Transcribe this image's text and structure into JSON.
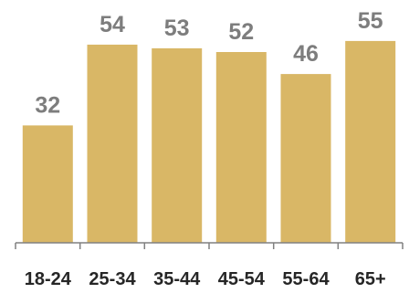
{
  "chart_data": {
    "type": "bar",
    "categories": [
      "18-24",
      "25-34",
      "35-44",
      "45-54",
      "55-64",
      "65+"
    ],
    "values": [
      32,
      54,
      53,
      52,
      46,
      55
    ],
    "title": "",
    "xlabel": "",
    "ylabel": "",
    "ylim": [
      0,
      60
    ],
    "grid": false,
    "legend": "none",
    "colors": {
      "bar": "#d9b766",
      "data_label": "#7d7d7d",
      "tick_label": "#262626",
      "axis": "#808080"
    }
  }
}
